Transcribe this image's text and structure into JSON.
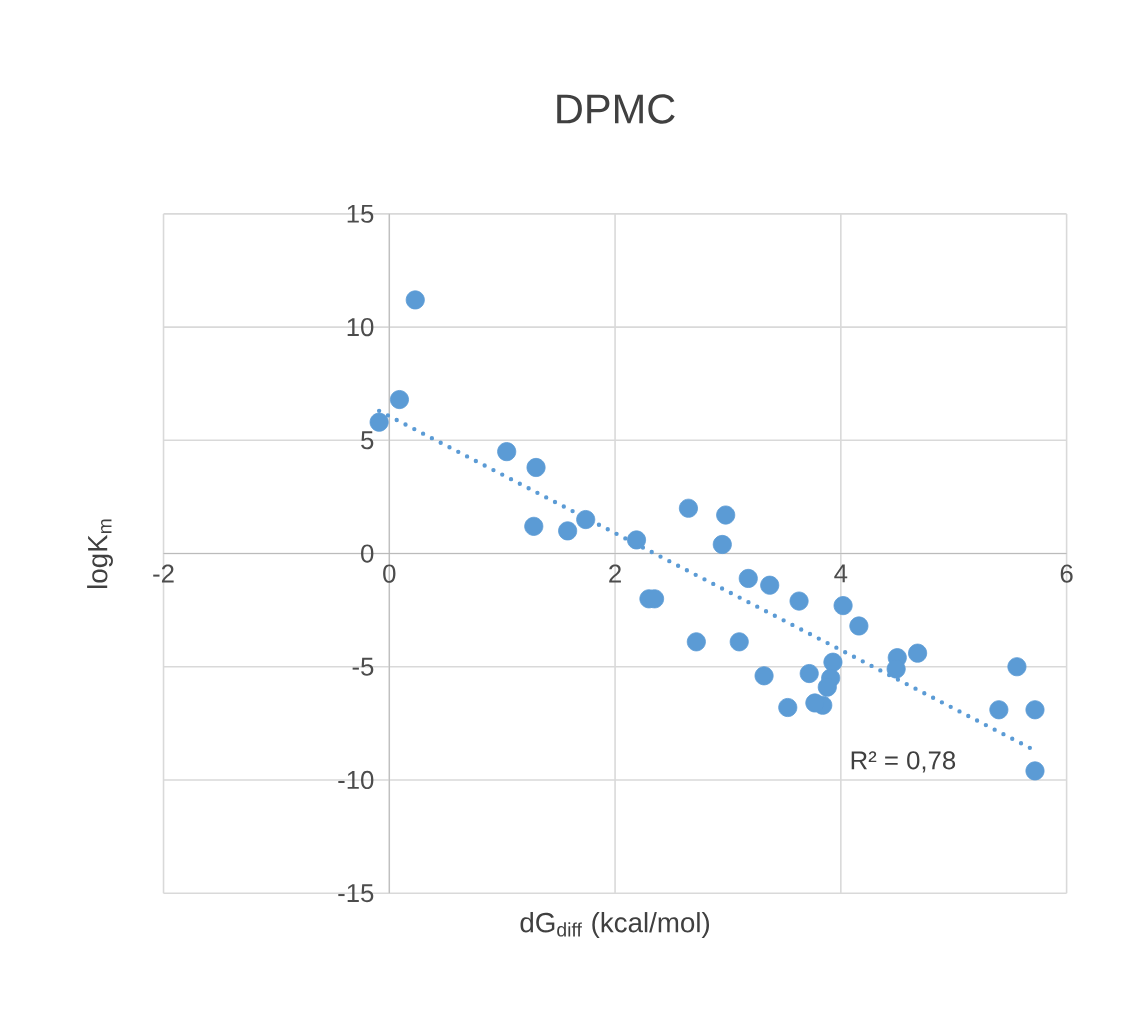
{
  "chart_data": {
    "type": "scatter",
    "title": "DPMC",
    "xlabel": "dG$_{diff}$ (kcal/mol)",
    "ylabel": "logK$_{m}$",
    "xlim": [
      -2,
      6
    ],
    "xticks": [
      -2,
      0,
      2,
      4,
      6
    ],
    "ylim": [
      -15,
      15
    ],
    "yticks": [
      -15,
      -10,
      -5,
      0,
      5,
      10,
      15
    ],
    "grid": true,
    "annotations": [
      "R² = 0,78"
    ],
    "series": [
      {
        "color": "#5b9bd5",
        "marker": "circle",
        "x": [
          -0.09,
          0.09,
          0.23,
          1.04,
          1.3,
          1.28,
          1.58,
          1.74,
          2.19,
          2.3,
          2.35,
          2.65,
          2.98,
          2.95,
          3.18,
          3.37,
          3.63,
          4.02,
          4.16,
          2.72,
          3.1,
          3.32,
          3.53,
          3.72,
          3.93,
          3.91,
          3.84,
          3.77,
          3.88,
          4.5,
          4.68,
          4.49,
          5.56,
          5.4,
          5.72,
          5.72
        ],
        "values": [
          5.8,
          6.8,
          11.2,
          4.5,
          3.8,
          1.2,
          1.0,
          1.5,
          0.6,
          -2.0,
          -2.0,
          2.0,
          1.7,
          0.4,
          -1.1,
          -1.4,
          -2.1,
          -2.3,
          -3.2,
          -3.9,
          -3.9,
          -5.4,
          -6.8,
          -5.3,
          -4.8,
          -5.5,
          -6.7,
          -6.6,
          -5.9,
          -4.6,
          -4.4,
          -5.1,
          -5.0,
          -6.9,
          -6.9,
          -9.6
        ]
      },
      {
        "type": "line",
        "color": "#5b9bd5",
        "marker": "none",
        "line_style": "dotted",
        "x": [
          -0.09,
          5.72
        ],
        "values": [
          6.3,
          -8.7
        ]
      }
    ]
  }
}
